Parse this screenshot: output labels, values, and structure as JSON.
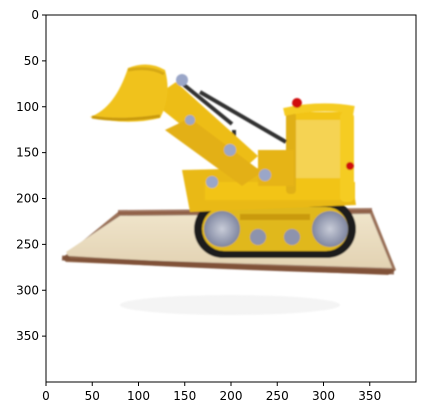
{
  "figure": {
    "kind": "image-plot",
    "subject": "rendered 3D model of a yellow toy bulldozer with a front loader bucket on a sandy base",
    "x_ticks": [
      "0",
      "50",
      "100",
      "150",
      "200",
      "250",
      "300",
      "350"
    ],
    "y_ticks": [
      "0",
      "50",
      "100",
      "150",
      "200",
      "250",
      "300",
      "350"
    ],
    "x_tick_values": [
      0,
      50,
      100,
      150,
      200,
      250,
      300,
      350
    ],
    "y_tick_values": [
      0,
      50,
      100,
      150,
      200,
      250,
      300,
      350
    ],
    "image_extent": [
      0,
      400
    ],
    "colors": {
      "body": "#f2c418",
      "body_shadow": "#c99a10",
      "track": "#1f1f1f",
      "wheel": "#9aa0b4",
      "sand": "#e9dcc0",
      "soil": "#8a5a3c",
      "light": "#d01010",
      "joint": "#9aa6c8"
    }
  }
}
